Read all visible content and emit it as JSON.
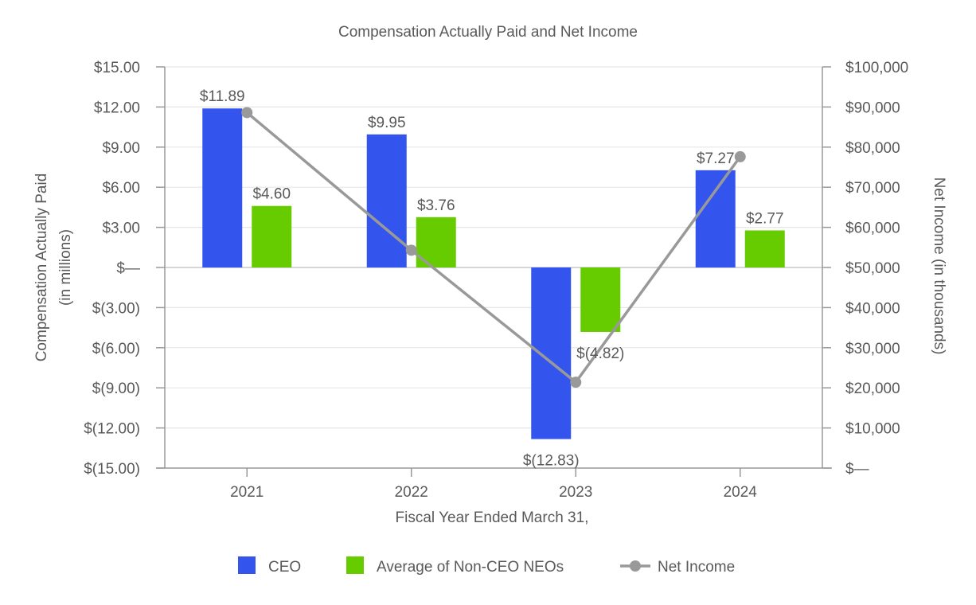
{
  "chart_data": {
    "type": "bar",
    "title": "Compensation Actually Paid and Net Income",
    "xlabel": "Fiscal Year Ended March 31,",
    "ylabel_left": "Compensation Actually Paid",
    "ylabel_left_sub": "(in millions)",
    "ylabel_right": "Net Income (in thousands)",
    "categories": [
      "2021",
      "2022",
      "2023",
      "2024"
    ],
    "ylim_left": [
      -15,
      15
    ],
    "ylim_right": [
      0,
      100000
    ],
    "left_ticks": [
      15,
      12,
      9,
      6,
      3,
      0,
      -3,
      -6,
      -9,
      -12,
      -15
    ],
    "left_tick_labels": [
      "$15.00",
      "$12.00",
      "$9.00",
      "$6.00",
      "$3.00",
      "$—",
      "$(3.00)",
      "$(6.00)",
      "$(9.00)",
      "$(12.00)",
      "$(15.00)"
    ],
    "right_ticks": [
      100000,
      90000,
      80000,
      70000,
      60000,
      50000,
      40000,
      30000,
      20000,
      10000,
      0
    ],
    "right_tick_labels": [
      "$100,000",
      "$90,000",
      "$80,000",
      "$70,000",
      "$60,000",
      "$50,000",
      "$40,000",
      "$30,000",
      "$20,000",
      "$10,000",
      "$—"
    ],
    "series": [
      {
        "name": "CEO",
        "kind": "bar",
        "color": "#3355ee",
        "values": [
          11.89,
          9.95,
          -12.83,
          7.27
        ],
        "labels": [
          "$11.89",
          "$9.95",
          "$(12.83)",
          "$7.27"
        ]
      },
      {
        "name": "Average of Non-CEO NEOs",
        "kind": "bar",
        "color": "#66cc00",
        "values": [
          4.6,
          3.76,
          -4.82,
          2.77
        ],
        "labels": [
          "$4.60",
          "$3.76",
          "$(4.82)",
          "$2.77"
        ]
      },
      {
        "name": "Net Income",
        "kind": "line",
        "axis": "right",
        "color": "#999999",
        "values": [
          88600,
          54300,
          21400,
          77600
        ]
      }
    ],
    "grid": true,
    "legend": "bottom-center"
  }
}
